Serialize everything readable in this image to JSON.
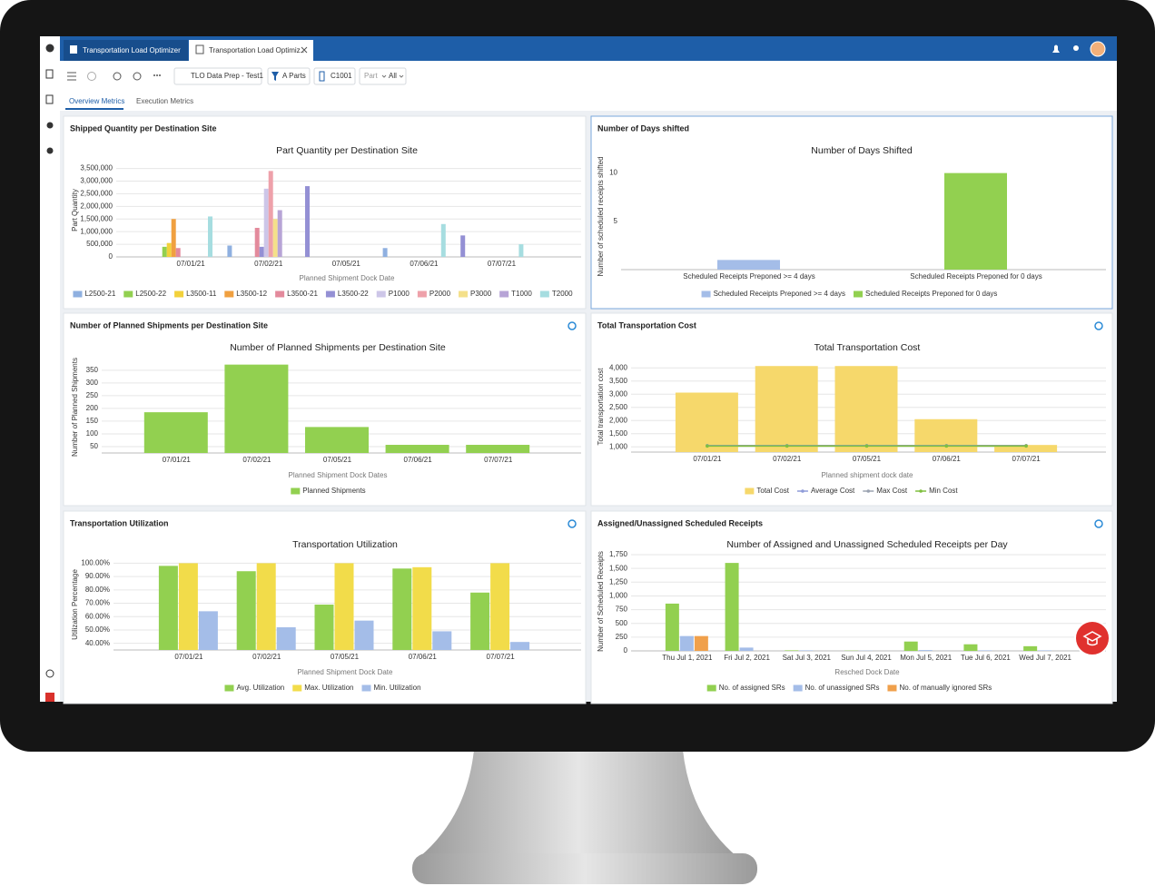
{
  "app": {
    "tabs": [
      "Transportation Load Optimizer",
      "Transportation Load Optimiz.."
    ],
    "toolbar": [
      "TLO Data Prep - Test1",
      "A Parts",
      "C1001",
      "Part",
      "All"
    ],
    "subtabs": [
      "Overview Metrics",
      "Execution Metrics"
    ]
  },
  "panels": [
    {
      "title": "Shipped Quantity per Destination Site"
    },
    {
      "title": "Number of Days shifted"
    },
    {
      "title": "Number of Planned Shipments per Destination Site"
    },
    {
      "title": "Total Transportation Cost"
    },
    {
      "title": "Transportation Utilization"
    },
    {
      "title": "Assigned/Unassigned Scheduled Receipts"
    }
  ],
  "chart_data": [
    {
      "type": "bar",
      "title": "Part Quantity per Destination Site",
      "ylabel": "Part Quantity",
      "xlabel": "Planned Shipment Dock Date",
      "categories": [
        null,
        "07/01/21",
        null,
        null,
        null,
        "07/02/21",
        null,
        null,
        null,
        "07/05/21",
        null,
        null,
        null,
        "07/06/21",
        null,
        null,
        null,
        "07/07/21",
        null,
        null
      ],
      "series": [
        {
          "name": "L2500-21",
          "color": "#8fb0e0",
          "values": [
            null,
            null,
            null,
            450000,
            null,
            null,
            null,
            null,
            null,
            null,
            null,
            350000,
            null,
            null,
            null,
            null,
            null,
            null,
            null,
            null
          ]
        },
        {
          "name": "L2500-22",
          "color": "#92d050",
          "values": [
            400000,
            null,
            null,
            null,
            null,
            null,
            null,
            null,
            null,
            null,
            null,
            null,
            null,
            null,
            null,
            null,
            null,
            null,
            null,
            null
          ]
        },
        {
          "name": "L3500-11",
          "color": "#f2d13b",
          "values": [
            550000,
            null,
            null,
            null,
            null,
            null,
            null,
            null,
            null,
            null,
            null,
            null,
            null,
            null,
            null,
            null,
            null,
            null,
            null,
            null
          ]
        },
        {
          "name": "L3500-12",
          "color": "#f0a040",
          "values": [
            1500000,
            null,
            null,
            null,
            null,
            null,
            null,
            null,
            null,
            null,
            null,
            null,
            null,
            null,
            null,
            null,
            null,
            null,
            null,
            null
          ]
        },
        {
          "name": "L3500-21",
          "color": "#e38a9c",
          "values": [
            350000,
            null,
            null,
            null,
            null,
            1150000,
            null,
            null,
            null,
            null,
            null,
            null,
            null,
            null,
            null,
            null,
            null,
            null,
            null,
            null
          ]
        },
        {
          "name": "L3500-22",
          "color": "#9490d4",
          "values": [
            null,
            null,
            null,
            null,
            null,
            400000,
            null,
            2800000,
            null,
            null,
            null,
            null,
            null,
            null,
            null,
            850000,
            null,
            null,
            null,
            null
          ]
        },
        {
          "name": "P1000",
          "color": "#cdc6e8",
          "values": [
            null,
            null,
            null,
            null,
            null,
            2700000,
            null,
            null,
            null,
            null,
            null,
            null,
            null,
            null,
            null,
            null,
            null,
            null,
            null,
            null
          ]
        },
        {
          "name": "P2000",
          "color": "#eea1aa",
          "values": [
            null,
            null,
            null,
            null,
            null,
            3400000,
            null,
            null,
            null,
            null,
            null,
            null,
            null,
            null,
            null,
            null,
            null,
            null,
            null,
            null
          ]
        },
        {
          "name": "P3000",
          "color": "#f4e08a",
          "values": [
            null,
            null,
            null,
            null,
            null,
            1500000,
            null,
            null,
            null,
            null,
            null,
            null,
            null,
            null,
            null,
            null,
            null,
            null,
            null,
            null
          ]
        },
        {
          "name": "T1000",
          "color": "#b7a4d6",
          "values": [
            null,
            null,
            null,
            null,
            null,
            1850000,
            null,
            null,
            null,
            null,
            null,
            null,
            null,
            null,
            null,
            null,
            null,
            null,
            null,
            null
          ]
        },
        {
          "name": "T2000",
          "color": "#a6dde0",
          "values": [
            null,
            null,
            1600000,
            null,
            null,
            null,
            null,
            null,
            null,
            null,
            null,
            null,
            null,
            null,
            1300000,
            null,
            null,
            null,
            500000,
            null
          ]
        }
      ],
      "ylim": [
        0,
        3700000
      ],
      "yticks": [
        0,
        {
          "value": 500000,
          "label": "500,000"
        },
        {
          "value": 1000000,
          "label": "1,000,000"
        },
        {
          "value": 1500000,
          "label": "1,500,000"
        },
        {
          "value": 2000000,
          "label": "2,000,000"
        },
        {
          "value": 2500000,
          "label": "2,500,000"
        },
        {
          "value": 3000000,
          "label": "3,000,000"
        },
        {
          "value": 3500000,
          "label": "3,500,000"
        }
      ],
      "grid": true,
      "legend": "bottom"
    },
    {
      "type": "bar",
      "title": "Number of Days Shifted",
      "ylabel": "Number of scheduled receipts shifted",
      "categories": [
        "Scheduled Receipts Preponed >= 4 days",
        "Scheduled Receipts Preponed for 0 days"
      ],
      "series": [
        {
          "name": "Scheduled Receipts Preponed >= 4 days",
          "color": "#a4bde8",
          "values": [
            1,
            null
          ]
        },
        {
          "name": "Scheduled Receipts Preponed for 0 days",
          "color": "#92d050",
          "values": [
            null,
            10
          ]
        }
      ],
      "ylim": [
        0,
        11
      ],
      "yticks": [
        5,
        10
      ],
      "grid": false,
      "legend": "bottom"
    },
    {
      "type": "bar",
      "title": "Number of Planned Shipments per Destination Site",
      "ylabel": "Number of Planned Shipments",
      "xlabel": "Planned Shipment Dock Dates",
      "categories": [
        "07/01/21",
        "07/02/21",
        "07/05/21",
        "07/06/21",
        "07/07/21"
      ],
      "series": [
        {
          "name": "Planned Shipments",
          "color": "#92d050",
          "values": [
            185,
            372,
            127,
            57,
            57
          ]
        }
      ],
      "ylim": [
        25,
        385
      ],
      "yticks": [
        50,
        100,
        150,
        200,
        250,
        300,
        350
      ],
      "grid": true,
      "legend": "bottom"
    },
    {
      "type": "bar",
      "title": "Total Transportation Cost",
      "ylabel": "Total transportation cost",
      "xlabel": "Planned shipment dock date",
      "categories": [
        "07/01/21",
        "07/02/21",
        "07/05/21",
        "07/06/21",
        "07/07/21"
      ],
      "series": [
        {
          "name": "Total Cost",
          "color": "#f6d86b",
          "values": [
            3060,
            4070,
            4070,
            2050,
            1070
          ]
        },
        {
          "name": "Average Cost",
          "type": "line",
          "color": "#8e9bd8",
          "values": [
            1040,
            1040,
            1040,
            1040,
            1040
          ]
        },
        {
          "name": "Max Cost",
          "type": "line",
          "color": "#9aa2b1",
          "values": [
            1050,
            1050,
            1050,
            1050,
            1050
          ]
        },
        {
          "name": "Min Cost",
          "type": "line",
          "color": "#7fbf3f",
          "values": [
            1030,
            1030,
            1030,
            1030,
            1030
          ]
        }
      ],
      "ylim": [
        800,
        4250
      ],
      "yticks": [
        {
          "value": 1000,
          "label": "1,000"
        },
        {
          "value": 1500,
          "label": "1,500"
        },
        {
          "value": 2000,
          "label": "2,000"
        },
        {
          "value": 2500,
          "label": "2,500"
        },
        {
          "value": 3000,
          "label": "3,000"
        },
        {
          "value": 3500,
          "label": "3,500"
        },
        {
          "value": 4000,
          "label": "4,000"
        }
      ],
      "grid": true,
      "legend": "bottom"
    },
    {
      "type": "bar",
      "title": "Transportation Utilization",
      "ylabel": "Utilization Percentage",
      "xlabel": "Planned Shipment Dock Date",
      "categories": [
        "07/01/21",
        "07/02/21",
        "07/05/21",
        "07/06/21",
        "07/07/21"
      ],
      "series": [
        {
          "name": "Avg. Utilization",
          "color": "#92d050",
          "values": [
            98,
            94,
            69,
            96,
            78
          ]
        },
        {
          "name": "Max. Utilization",
          "color": "#f2dc4a",
          "values": [
            100,
            100,
            100,
            97,
            100
          ]
        },
        {
          "name": "Min. Utilization",
          "color": "#a4bde8",
          "values": [
            64,
            52,
            57,
            49,
            41
          ]
        }
      ],
      "ylim": [
        35,
        103
      ],
      "yticks": [
        {
          "value": 40,
          "label": "40.00%"
        },
        {
          "value": 50,
          "label": "50.00%"
        },
        {
          "value": 60,
          "label": "60.00%"
        },
        {
          "value": 70,
          "label": "70.00%"
        },
        {
          "value": 80,
          "label": "80.00%"
        },
        {
          "value": 90,
          "label": "90.00%"
        },
        {
          "value": 100,
          "label": "100.00%"
        }
      ],
      "grid": true,
      "legend": "bottom"
    },
    {
      "type": "bar",
      "title": "Number of Assigned and Unassigned Scheduled Receipts per Day",
      "ylabel": "Number of Scheduled Receipts",
      "xlabel": "Resched Dock Date",
      "categories": [
        "Thu Jul 1, 2021",
        "Fri Jul 2, 2021",
        "Sat Jul 3, 2021",
        "Sun Jul 4, 2021",
        "Mon Jul 5, 2021",
        "Tue Jul 6, 2021",
        "Wed Jul 7, 2021"
      ],
      "series": [
        {
          "name": "No. of assigned SRs",
          "color": "#92d050",
          "values": [
            860,
            1600,
            10,
            5,
            170,
            120,
            85
          ]
        },
        {
          "name": "No. of unassigned SRs",
          "color": "#a4bde8",
          "values": [
            270,
            60,
            10,
            5,
            15,
            10,
            10
          ]
        },
        {
          "name": "No. of manually ignored SRs",
          "color": "#f0a04b",
          "values": [
            270,
            0,
            0,
            0,
            0,
            0,
            0
          ]
        }
      ],
      "ylim": [
        0,
        1800
      ],
      "yticks": [
        0,
        250,
        500,
        750,
        {
          "value": 1000,
          "label": "1,000"
        },
        {
          "value": 1250,
          "label": "1,250"
        },
        {
          "value": 1500,
          "label": "1,500"
        },
        {
          "value": 1750,
          "label": "1,750"
        }
      ],
      "grid": true,
      "legend": "bottom"
    }
  ]
}
